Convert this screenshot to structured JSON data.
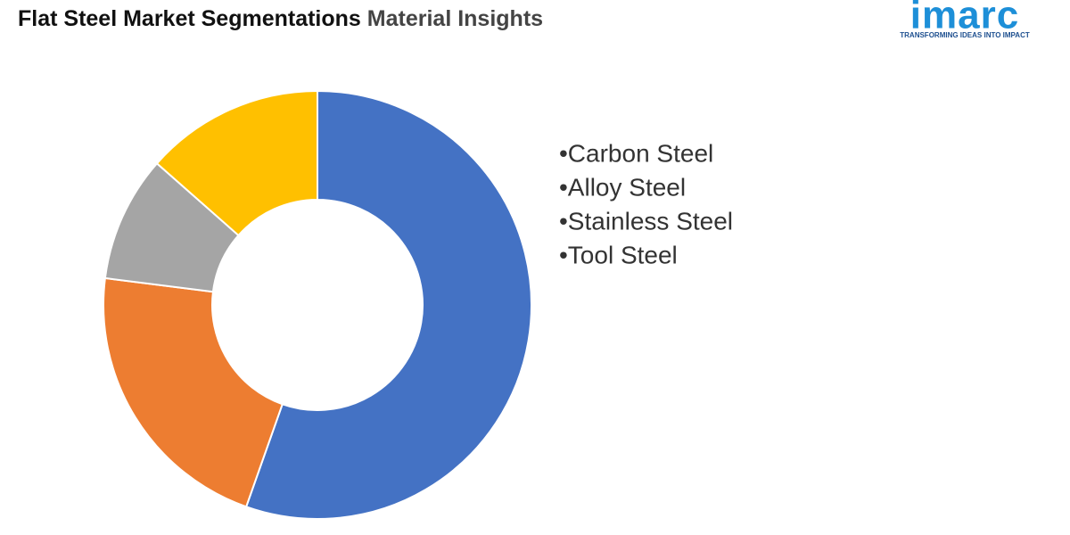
{
  "header": {
    "title": "Flat Steel Market Segmentations",
    "title_accent": "Material Insights"
  },
  "logo": {
    "name": "imarc",
    "tagline": "TRANSFORMING IDEAS INTO IMPACT"
  },
  "chart_data": {
    "type": "donut",
    "categories": [
      "•Carbon Steel",
      "•Alloy Steel",
      "•Stainless Steel",
      "•Tool Steel"
    ],
    "values": [
      55.4,
      21.6,
      9.5,
      13.5
    ],
    "colors": [
      "#4472c4",
      "#ed7d31",
      "#a5a5a5",
      "#ffc000"
    ]
  }
}
